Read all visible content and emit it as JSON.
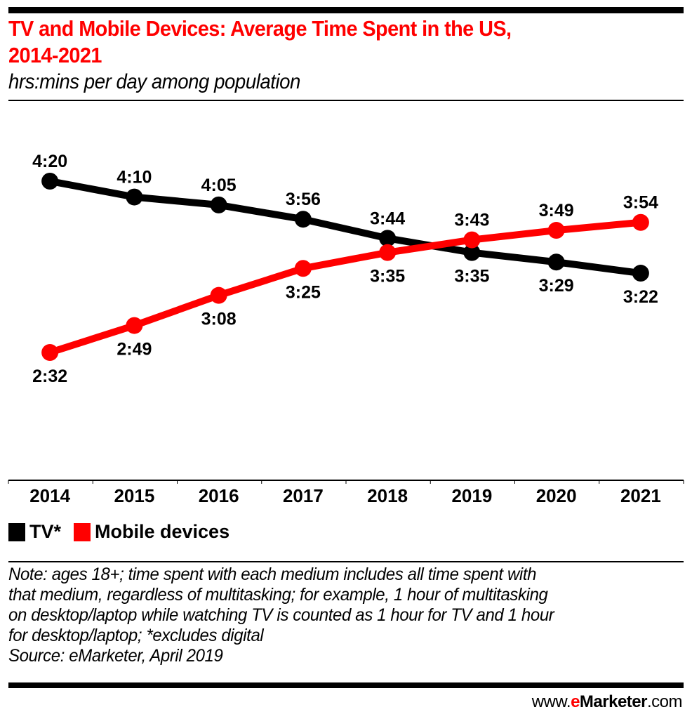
{
  "header": {
    "title_line1": "TV and Mobile Devices: Average Time Spent in the US,",
    "title_line2": "2014-2021",
    "subtitle": "hrs:mins per day among population"
  },
  "chart_data": {
    "type": "line",
    "title": "TV and Mobile Devices: Average Time Spent in the US, 2014-2021",
    "subtitle": "hrs:mins per day among population",
    "xlabel": "",
    "ylabel": "hrs:mins per day",
    "categories": [
      "2014",
      "2015",
      "2016",
      "2017",
      "2018",
      "2019",
      "2020",
      "2021"
    ],
    "series": [
      {
        "name": "TV*",
        "color": "#000000",
        "values_minutes": [
          260,
          250,
          245,
          236,
          224,
          215,
          209,
          202
        ],
        "labels": [
          "4:20",
          "4:10",
          "4:05",
          "3:56",
          "3:44",
          "3:35",
          "3:29",
          "3:22"
        ],
        "label_position": [
          "above",
          "above",
          "above",
          "above",
          "above",
          "below",
          "below",
          "below"
        ]
      },
      {
        "name": "Mobile devices",
        "color": "#ff0000",
        "values_minutes": [
          152,
          169,
          188,
          205,
          215,
          223,
          229,
          234
        ],
        "labels": [
          "2:32",
          "2:49",
          "3:08",
          "3:25",
          "3:35",
          "3:43",
          "3:49",
          "3:54"
        ],
        "label_position": [
          "below",
          "below",
          "below",
          "below",
          "below",
          "above",
          "above",
          "above"
        ]
      }
    ],
    "ylim_minutes": [
      80,
      278
    ],
    "grid": false,
    "y_axis_visible": false,
    "legend": "bottom-left"
  },
  "legend": {
    "items": [
      {
        "label": "TV*",
        "color": "#000000"
      },
      {
        "label": "Mobile devices",
        "color": "#ff0000"
      }
    ]
  },
  "footer": {
    "note_lines": [
      "Note: ages 18+; time spent with each medium includes all time spent with",
      "that medium, regardless of multitasking; for example, 1 hour of multitasking",
      "on desktop/laptop while watching TV is counted as 1 hour for TV and 1 hour",
      "for desktop/laptop; *excludes digital"
    ],
    "source": "Source: eMarketer, April 2019",
    "brand_prefix": "www.",
    "brand_e": "e",
    "brand_name": "Marketer",
    "brand_suffix": ".com"
  }
}
